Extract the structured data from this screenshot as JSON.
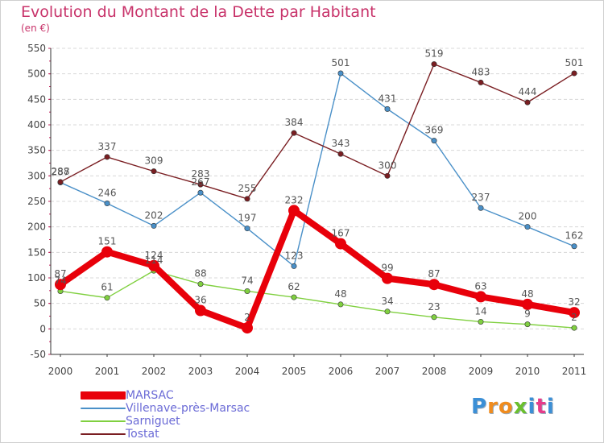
{
  "title": "Evolution du Montant de la Dette par Habitant",
  "subtitle": "(en €)",
  "logo": {
    "text": "Proxiti",
    "letters": [
      "P",
      "r",
      "o",
      "x",
      "i",
      "t",
      "i"
    ],
    "colors": [
      "#3b8fd6",
      "#f08c1e",
      "#f08c1e",
      "#6bbf2e",
      "#3b8fd6",
      "#e63c8a",
      "#3b8fd6"
    ]
  },
  "colors": {
    "title": "#c8336a",
    "legend_text": "#6b6bd6",
    "axis_text": "#444444",
    "grid": "#d8d8d8",
    "value_label": "#555555",
    "background": "#ffffff"
  },
  "chart_data": {
    "type": "line",
    "title": "Evolution du Montant de la Dette par Habitant",
    "ylabel": "(en €)",
    "xlabel": "",
    "x": [
      "2000",
      "2001",
      "2002",
      "2003",
      "2004",
      "2005",
      "2006",
      "2007",
      "2008",
      "2009",
      "2010",
      "2011"
    ],
    "ylim": [
      -50,
      550
    ],
    "yticks": [
      -50,
      0,
      50,
      100,
      150,
      200,
      250,
      300,
      350,
      400,
      450,
      500,
      550
    ],
    "grid": "horizontal dashed",
    "legend_position": "bottom-left",
    "series": [
      {
        "name": "MARSAC",
        "color": "#e8000a",
        "emphasis": true,
        "values": [
          87,
          151,
          124,
          36,
          2,
          232,
          167,
          99,
          87,
          63,
          48,
          32
        ]
      },
      {
        "name": "Villenave-près-Marsac",
        "color": "#4a90c8",
        "emphasis": false,
        "values": [
          287,
          246,
          202,
          267,
          197,
          123,
          501,
          431,
          369,
          237,
          200,
          162
        ]
      },
      {
        "name": "Sarniguet",
        "color": "#80d040",
        "emphasis": false,
        "values": [
          74,
          61,
          114,
          88,
          74,
          62,
          48,
          34,
          23,
          14,
          9,
          2
        ]
      },
      {
        "name": "Tostat",
        "color": "#7a1e22",
        "emphasis": false,
        "values": [
          288,
          337,
          309,
          283,
          255,
          384,
          343,
          300,
          519,
          483,
          444,
          501
        ]
      }
    ]
  }
}
